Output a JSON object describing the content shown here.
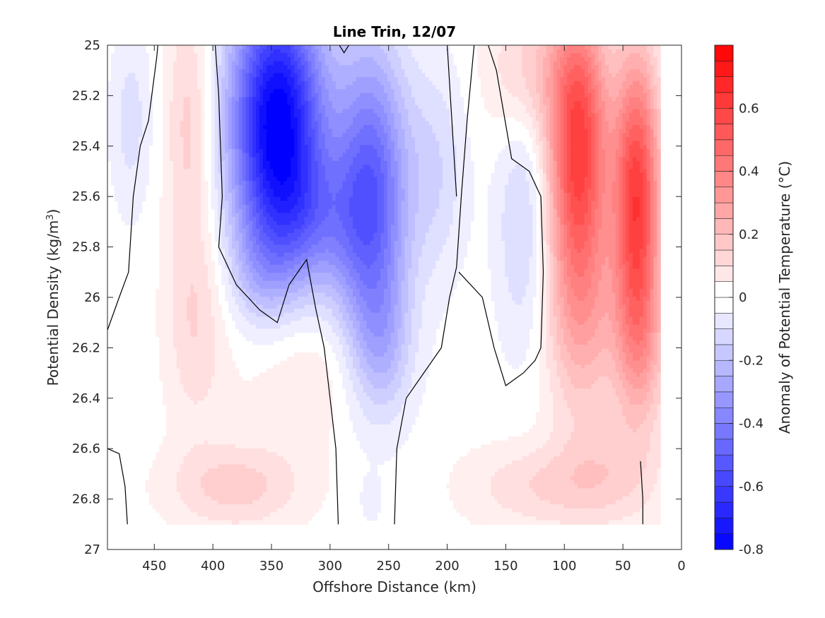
{
  "chart_data": {
    "type": "heatmap",
    "subtype": "filled-contour",
    "title": "Line Trin, 12/07",
    "xlabel": "Offshore Distance (km)",
    "ylabel_main": "Potential Density (kg/m",
    "ylabel_sup": "3",
    "ylabel_close": ")",
    "colorbar_label": "Anomaly of Potential Temperature (°C)",
    "xlim": [
      490,
      0
    ],
    "x_reversed": true,
    "ylim": [
      25,
      27
    ],
    "y_reversed": true,
    "clim": [
      -0.8,
      0.8
    ],
    "contour_step": 0.05,
    "zero_contour": true,
    "colormap": "blue-white-red",
    "color_negative": "#0000ff",
    "color_zero": "#ffffff",
    "color_positive": "#ff0000",
    "x_ticks": [
      {
        "value": 450,
        "label": "450"
      },
      {
        "value": 400,
        "label": "400"
      },
      {
        "value": 350,
        "label": "350"
      },
      {
        "value": 300,
        "label": "300"
      },
      {
        "value": 250,
        "label": "250"
      },
      {
        "value": 200,
        "label": "200"
      },
      {
        "value": 150,
        "label": "150"
      },
      {
        "value": 100,
        "label": "100"
      },
      {
        "value": 50,
        "label": "50"
      },
      {
        "value": 0,
        "label": "0"
      }
    ],
    "y_ticks": [
      {
        "value": 25.0,
        "label": "25"
      },
      {
        "value": 25.2,
        "label": "25.2"
      },
      {
        "value": 25.4,
        "label": "25.4"
      },
      {
        "value": 25.6,
        "label": "25.6"
      },
      {
        "value": 25.8,
        "label": "25.8"
      },
      {
        "value": 26.0,
        "label": "26"
      },
      {
        "value": 26.2,
        "label": "26.2"
      },
      {
        "value": 26.4,
        "label": "26.4"
      },
      {
        "value": 26.6,
        "label": "26.6"
      },
      {
        "value": 26.8,
        "label": "26.8"
      },
      {
        "value": 27.0,
        "label": "27"
      }
    ],
    "colorbar_ticks": [
      {
        "value": 0.6,
        "label": "0.6"
      },
      {
        "value": 0.4,
        "label": "0.4"
      },
      {
        "value": 0.2,
        "label": "0.2"
      },
      {
        "value": 0.0,
        "label": "0"
      },
      {
        "value": -0.2,
        "label": "-0.2"
      },
      {
        "value": -0.4,
        "label": "-0.4"
      },
      {
        "value": -0.6,
        "label": "-0.6"
      },
      {
        "value": -0.8,
        "label": "-0.8"
      }
    ],
    "data_extent": {
      "x": [
        490,
        18
      ],
      "y": [
        25,
        26.9
      ]
    },
    "anomaly_features": [
      {
        "x": 420,
        "y": 25.3,
        "value": 0.15,
        "sx": 14,
        "sy": 0.35
      },
      {
        "x": 415,
        "y": 26.1,
        "value": 0.12,
        "sx": 18,
        "sy": 0.3
      },
      {
        "x": 470,
        "y": 25.3,
        "value": -0.1,
        "sx": 12,
        "sy": 0.25
      },
      {
        "x": 345,
        "y": 25.3,
        "value": -0.82,
        "sx": 28,
        "sy": 0.38
      },
      {
        "x": 315,
        "y": 25.7,
        "value": -0.22,
        "sx": 30,
        "sy": 0.2
      },
      {
        "x": 265,
        "y": 25.6,
        "value": -0.5,
        "sx": 22,
        "sy": 0.42
      },
      {
        "x": 255,
        "y": 26.2,
        "value": -0.15,
        "sx": 18,
        "sy": 0.2
      },
      {
        "x": 210,
        "y": 25.5,
        "value": -0.12,
        "sx": 18,
        "sy": 0.3
      },
      {
        "x": 135,
        "y": 25.7,
        "value": -0.14,
        "sx": 16,
        "sy": 0.35
      },
      {
        "x": 88,
        "y": 25.4,
        "value": 0.6,
        "sx": 18,
        "sy": 0.4
      },
      {
        "x": 85,
        "y": 26.1,
        "value": 0.2,
        "sx": 22,
        "sy": 0.3
      },
      {
        "x": 38,
        "y": 25.6,
        "value": 0.6,
        "sx": 14,
        "sy": 0.4
      },
      {
        "x": 35,
        "y": 26.2,
        "value": 0.2,
        "sx": 16,
        "sy": 0.25
      },
      {
        "x": 130,
        "y": 25.1,
        "value": 0.15,
        "sx": 25,
        "sy": 0.2
      },
      {
        "x": 380,
        "y": 26.75,
        "value": 0.15,
        "sx": 40,
        "sy": 0.12
      },
      {
        "x": 120,
        "y": 26.75,
        "value": 0.12,
        "sx": 45,
        "sy": 0.12
      },
      {
        "x": 60,
        "y": 26.7,
        "value": 0.1,
        "sx": 30,
        "sy": 0.15
      },
      {
        "x": 320,
        "y": 26.3,
        "value": 0.08,
        "sx": 40,
        "sy": 0.2
      },
      {
        "x": 360,
        "y": 25.9,
        "value": -0.1,
        "sx": 18,
        "sy": 0.15
      },
      {
        "x": 265,
        "y": 26.8,
        "value": -0.06,
        "sx": 6,
        "sy": 0.06
      }
    ],
    "zero_contour_paths": [
      [
        [
          490,
          26.13
        ],
        [
          480,
          26.0
        ],
        [
          472,
          25.9
        ],
        [
          468,
          25.6
        ],
        [
          462,
          25.4
        ],
        [
          455,
          25.3
        ],
        [
          448,
          25.05
        ],
        [
          447,
          25.0
        ]
      ],
      [
        [
          490,
          26.6
        ],
        [
          480,
          26.62
        ],
        [
          475,
          26.75
        ],
        [
          473,
          26.9
        ]
      ],
      [
        [
          398,
          25.0
        ],
        [
          395,
          25.2
        ],
        [
          392,
          25.6
        ],
        [
          395,
          25.8
        ],
        [
          380,
          25.95
        ],
        [
          360,
          26.05
        ],
        [
          345,
          26.1
        ],
        [
          335,
          25.95
        ],
        [
          320,
          25.85
        ],
        [
          312,
          26.05
        ],
        [
          305,
          26.2
        ],
        [
          300,
          26.4
        ],
        [
          295,
          26.6
        ],
        [
          293,
          26.9
        ]
      ],
      [
        [
          292,
          25.0
        ],
        [
          288,
          25.03
        ],
        [
          284,
          25.0
        ]
      ],
      [
        [
          245,
          26.9
        ],
        [
          243,
          26.6
        ],
        [
          235,
          26.4
        ],
        [
          220,
          26.3
        ],
        [
          205,
          26.2
        ],
        [
          198,
          26.0
        ],
        [
          192,
          25.88
        ],
        [
          188,
          25.6
        ],
        [
          183,
          25.3
        ],
        [
          177,
          25.0
        ]
      ],
      [
        [
          200,
          25.0
        ],
        [
          196,
          25.3
        ],
        [
          192,
          25.6
        ]
      ],
      [
        [
          190,
          25.9
        ],
        [
          170,
          26.0
        ],
        [
          160,
          26.2
        ],
        [
          150,
          26.35
        ],
        [
          135,
          26.3
        ],
        [
          125,
          26.25
        ],
        [
          120,
          26.2
        ],
        [
          118,
          25.9
        ],
        [
          120,
          25.6
        ],
        [
          130,
          25.5
        ],
        [
          145,
          25.45
        ],
        [
          158,
          25.1
        ],
        [
          165,
          25.0
        ]
      ],
      [
        [
          35,
          26.65
        ],
        [
          33,
          26.8
        ],
        [
          33,
          26.9
        ]
      ]
    ]
  }
}
